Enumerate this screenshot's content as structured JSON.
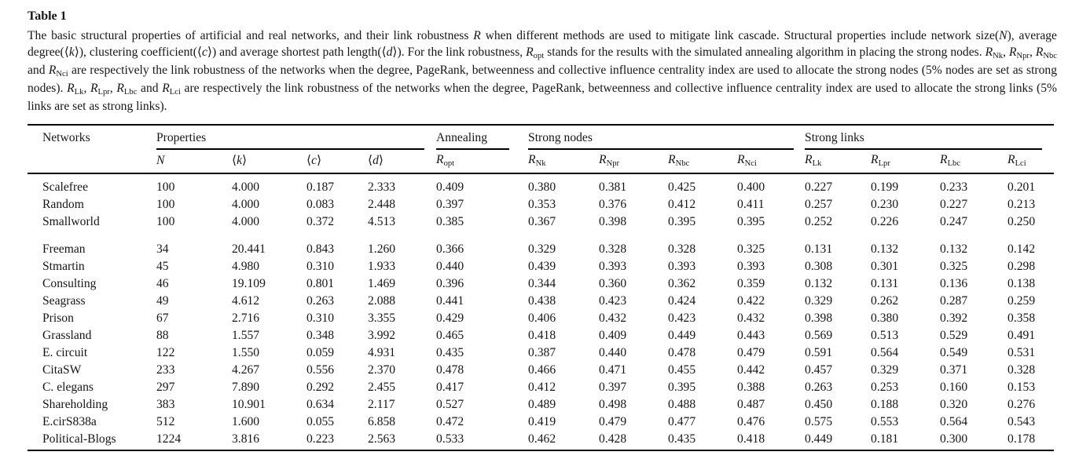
{
  "page": {
    "background": "#ffffff",
    "text_color": "#161616",
    "rule_color": "#000000"
  },
  "table_label": "Table 1",
  "caption_segments": [
    {
      "t": "The basic structural properties of artificial and real networks, and their link robustness "
    },
    {
      "t": "R",
      "i": true
    },
    {
      "t": " when different methods are used to mitigate link cascade. Structural properties include network size("
    },
    {
      "t": "N",
      "i": true
    },
    {
      "t": "), average degree(⟨"
    },
    {
      "t": "k",
      "i": true
    },
    {
      "t": "⟩), clustering coefficient(⟨"
    },
    {
      "t": "c",
      "i": true
    },
    {
      "t": "⟩) and average shortest path length(⟨"
    },
    {
      "t": "d",
      "i": true
    },
    {
      "t": "⟩). For the link robustness, "
    },
    {
      "t": "R",
      "i": true
    },
    {
      "t": "opt",
      "s": true
    },
    {
      "t": " stands for the results with the simulated annealing algorithm in placing the strong nodes. "
    },
    {
      "t": "R",
      "i": true
    },
    {
      "t": "Nk",
      "s": true
    },
    {
      "t": ", "
    },
    {
      "t": "R",
      "i": true
    },
    {
      "t": "Npr",
      "s": true
    },
    {
      "t": ", "
    },
    {
      "t": "R",
      "i": true
    },
    {
      "t": "Nbc",
      "s": true
    },
    {
      "t": " and "
    },
    {
      "t": "R",
      "i": true
    },
    {
      "t": "Nci",
      "s": true
    },
    {
      "t": " are respectively the link robustness of the networks when the degree, PageRank, betweenness and collective influence centrality index are used to allocate the strong nodes (5% nodes are set as strong nodes). "
    },
    {
      "t": "R",
      "i": true
    },
    {
      "t": "Lk",
      "s": true
    },
    {
      "t": ", "
    },
    {
      "t": "R",
      "i": true
    },
    {
      "t": "Lpr",
      "s": true
    },
    {
      "t": ", "
    },
    {
      "t": "R",
      "i": true
    },
    {
      "t": "Lbc",
      "s": true
    },
    {
      "t": " and "
    },
    {
      "t": "R",
      "i": true
    },
    {
      "t": "Lci",
      "s": true
    },
    {
      "t": " are respectively the link robustness of the networks when the degree, PageRank, betweenness and collective influence centrality index are used to allocate the strong links (5% links are set as strong links)."
    }
  ],
  "table": {
    "group_header": [
      {
        "label": "Networks",
        "colspan": 1,
        "underline": false
      },
      {
        "label": "Properties",
        "colspan": 4,
        "underline": true
      },
      {
        "label": "Annealing",
        "colspan": 1,
        "underline": true
      },
      {
        "label": "Strong nodes",
        "colspan": 4,
        "underline": true
      },
      {
        "label": "Strong links",
        "colspan": 4,
        "underline": true
      }
    ],
    "sub_header": [
      [],
      [
        {
          "t": "N",
          "i": true
        }
      ],
      [
        {
          "t": "⟨"
        },
        {
          "t": "k",
          "i": true
        },
        {
          "t": "⟩"
        }
      ],
      [
        {
          "t": "⟨"
        },
        {
          "t": "c",
          "i": true
        },
        {
          "t": "⟩"
        }
      ],
      [
        {
          "t": "⟨"
        },
        {
          "t": "d",
          "i": true
        },
        {
          "t": "⟩"
        }
      ],
      [
        {
          "t": "R",
          "i": true
        },
        {
          "t": "opt",
          "s": true
        }
      ],
      [
        {
          "t": "R",
          "i": true
        },
        {
          "t": "Nk",
          "s": true
        }
      ],
      [
        {
          "t": "R",
          "i": true
        },
        {
          "t": "Npr",
          "s": true
        }
      ],
      [
        {
          "t": "R",
          "i": true
        },
        {
          "t": "Nbc",
          "s": true
        }
      ],
      [
        {
          "t": "R",
          "i": true
        },
        {
          "t": "Nci",
          "s": true
        }
      ],
      [
        {
          "t": "R",
          "i": true
        },
        {
          "t": "Lk",
          "s": true
        }
      ],
      [
        {
          "t": "R",
          "i": true
        },
        {
          "t": "Lpr",
          "s": true
        }
      ],
      [
        {
          "t": "R",
          "i": true
        },
        {
          "t": "Lbc",
          "s": true
        }
      ],
      [
        {
          "t": "R",
          "i": true
        },
        {
          "t": "Lci",
          "s": true
        }
      ]
    ],
    "row_groups": [
      {
        "rows": [
          {
            "network": "Scalefree",
            "values": [
              "100",
              "4.000",
              "0.187",
              "2.333",
              "0.409",
              "0.380",
              "0.381",
              "0.425",
              "0.400",
              "0.227",
              "0.199",
              "0.233",
              "0.201"
            ]
          },
          {
            "network": "Random",
            "values": [
              "100",
              "4.000",
              "0.083",
              "2.448",
              "0.397",
              "0.353",
              "0.376",
              "0.412",
              "0.411",
              "0.257",
              "0.230",
              "0.227",
              "0.213"
            ]
          },
          {
            "network": "Smallworld",
            "values": [
              "100",
              "4.000",
              "0.372",
              "4.513",
              "0.385",
              "0.367",
              "0.398",
              "0.395",
              "0.395",
              "0.252",
              "0.226",
              "0.247",
              "0.250"
            ]
          }
        ]
      },
      {
        "rows": [
          {
            "network": "Freeman",
            "values": [
              "34",
              "20.441",
              "0.843",
              "1.260",
              "0.366",
              "0.329",
              "0.328",
              "0.328",
              "0.325",
              "0.131",
              "0.132",
              "0.132",
              "0.142"
            ]
          },
          {
            "network": "Stmartin",
            "values": [
              "45",
              "4.980",
              "0.310",
              "1.933",
              "0.440",
              "0.439",
              "0.393",
              "0.393",
              "0.393",
              "0.308",
              "0.301",
              "0.325",
              "0.298"
            ]
          },
          {
            "network": "Consulting",
            "values": [
              "46",
              "19.109",
              "0.801",
              "1.469",
              "0.396",
              "0.344",
              "0.360",
              "0.362",
              "0.359",
              "0.132",
              "0.131",
              "0.136",
              "0.138"
            ]
          },
          {
            "network": "Seagrass",
            "values": [
              "49",
              "4.612",
              "0.263",
              "2.088",
              "0.441",
              "0.438",
              "0.423",
              "0.424",
              "0.422",
              "0.329",
              "0.262",
              "0.287",
              "0.259"
            ]
          },
          {
            "network": "Prison",
            "values": [
              "67",
              "2.716",
              "0.310",
              "3.355",
              "0.429",
              "0.406",
              "0.432",
              "0.423",
              "0.432",
              "0.398",
              "0.380",
              "0.392",
              "0.358"
            ]
          },
          {
            "network": "Grassland",
            "values": [
              "88",
              "1.557",
              "0.348",
              "3.992",
              "0.465",
              "0.418",
              "0.409",
              "0.449",
              "0.443",
              "0.569",
              "0.513",
              "0.529",
              "0.491"
            ]
          },
          {
            "network": "E. circuit",
            "values": [
              "122",
              "1.550",
              "0.059",
              "4.931",
              "0.435",
              "0.387",
              "0.440",
              "0.478",
              "0.479",
              "0.591",
              "0.564",
              "0.549",
              "0.531"
            ]
          },
          {
            "network": "CitaSW",
            "values": [
              "233",
              "4.267",
              "0.556",
              "2.370",
              "0.478",
              "0.466",
              "0.471",
              "0.455",
              "0.442",
              "0.457",
              "0.329",
              "0.371",
              "0.328"
            ]
          },
          {
            "network": "C. elegans",
            "values": [
              "297",
              "7.890",
              "0.292",
              "2.455",
              "0.417",
              "0.412",
              "0.397",
              "0.395",
              "0.388",
              "0.263",
              "0.253",
              "0.160",
              "0.153"
            ]
          },
          {
            "network": "Shareholding",
            "values": [
              "383",
              "10.901",
              "0.634",
              "2.117",
              "0.527",
              "0.489",
              "0.498",
              "0.488",
              "0.487",
              "0.450",
              "0.188",
              "0.320",
              "0.276"
            ]
          },
          {
            "network": "E.cirS838a",
            "values": [
              "512",
              "1.600",
              "0.055",
              "6.858",
              "0.472",
              "0.419",
              "0.479",
              "0.477",
              "0.476",
              "0.575",
              "0.553",
              "0.564",
              "0.543"
            ]
          },
          {
            "network": "Political-Blogs",
            "values": [
              "1224",
              "3.816",
              "0.223",
              "2.563",
              "0.533",
              "0.462",
              "0.428",
              "0.435",
              "0.418",
              "0.449",
              "0.181",
              "0.300",
              "0.178"
            ]
          }
        ]
      }
    ]
  }
}
